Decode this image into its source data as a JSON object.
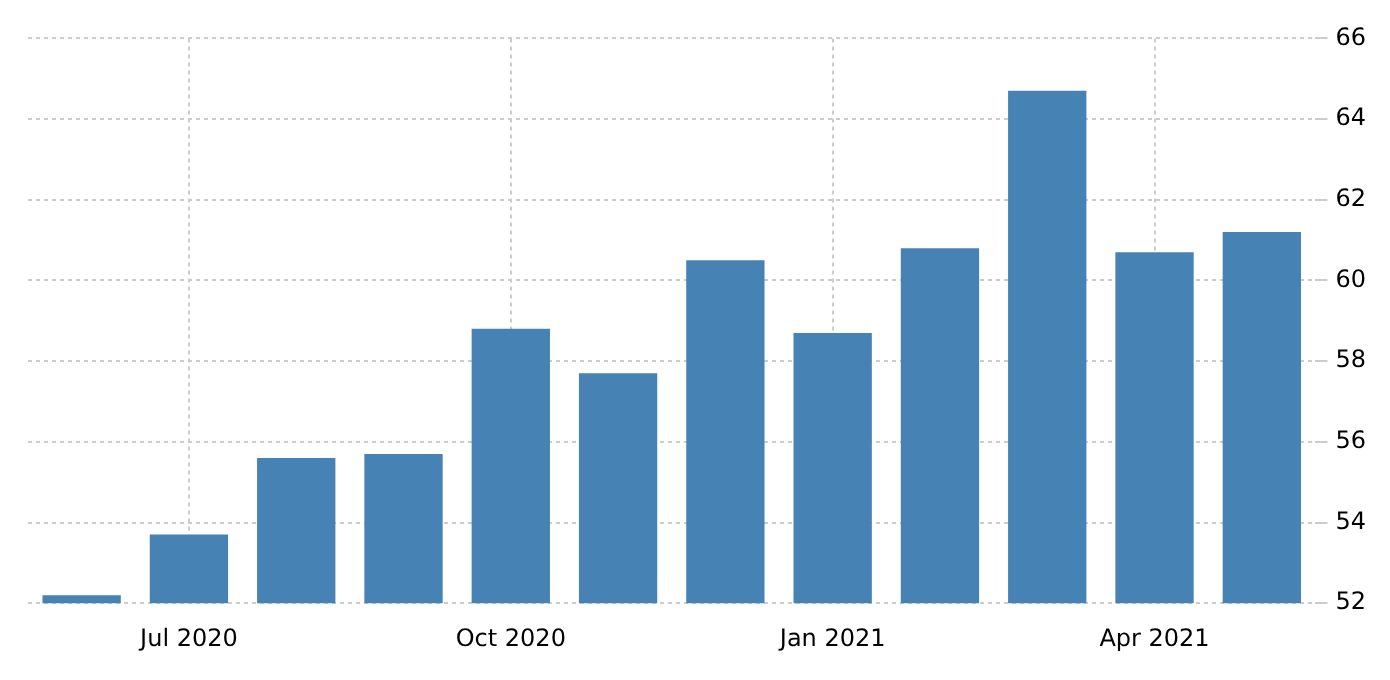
{
  "chart_data": {
    "type": "bar",
    "categories": [
      null,
      "Jul 2020",
      null,
      null,
      "Oct 2020",
      null,
      null,
      "Jan 2021",
      null,
      null,
      "Apr 2021",
      null
    ],
    "values": [
      52.2,
      53.7,
      55.6,
      55.7,
      58.8,
      57.7,
      60.5,
      58.7,
      60.8,
      64.7,
      60.7,
      61.2
    ],
    "color": "#4682b4",
    "ylim": [
      52,
      66
    ],
    "yticks": [
      52,
      54,
      56,
      58,
      60,
      62,
      64,
      66
    ],
    "grid": true,
    "legend": false
  }
}
